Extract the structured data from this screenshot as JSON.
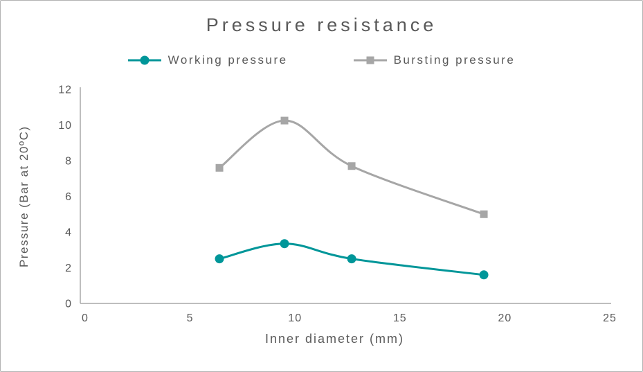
{
  "chart_data": {
    "type": "line",
    "title": "Pressure resistance",
    "xlabel": "Inner diameter (mm)",
    "ylabel": "Pressure (Bar at 20ºC)",
    "xlim": [
      0,
      25
    ],
    "ylim": [
      0,
      12
    ],
    "x_ticks": [
      0,
      5,
      10,
      15,
      20,
      25
    ],
    "y_ticks": [
      0,
      2,
      4,
      6,
      8,
      10,
      12
    ],
    "grid": false,
    "legend_position": "top",
    "axis_color": "#a9a9a9",
    "text_color": "#595959",
    "series": [
      {
        "name": "Working pressure",
        "color": "#009699",
        "marker": "circle",
        "x": [
          6.4,
          9.5,
          12.7,
          19.0
        ],
        "y": [
          2.5,
          3.35,
          2.5,
          1.6
        ]
      },
      {
        "name": "Bursting pressure",
        "color": "#a6a6a6",
        "marker": "square",
        "x": [
          6.4,
          9.5,
          12.7,
          19.0
        ],
        "y": [
          7.6,
          10.25,
          7.7,
          5.0
        ]
      }
    ]
  }
}
